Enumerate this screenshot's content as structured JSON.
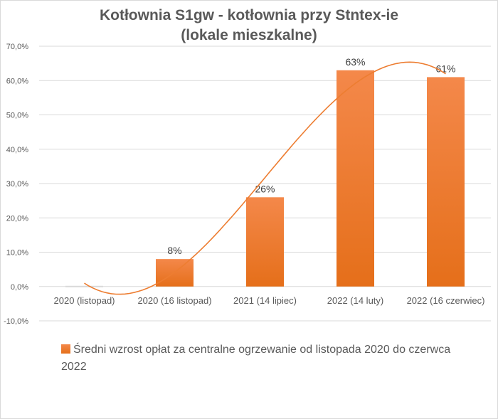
{
  "chart_data": {
    "type": "bar",
    "title_line1": "Kotłownia S1gw - kotłownia przy Stntex-ie",
    "title_line2": "(lokale mieszkalne)",
    "categories": [
      "2020 (listopad)",
      "2020 (16 listopad)",
      "2021 (14 lipiec)",
      "2022 (14 luty)",
      "2022 (16 czerwiec)"
    ],
    "series": [
      {
        "name": "Średni wzrost opłat za centralne ogrzewanie  od listopada 2020  do czerwca 2022",
        "values": [
          0,
          8,
          26,
          63,
          61
        ],
        "data_labels": [
          "",
          "8%",
          "26%",
          "63%",
          "61%"
        ]
      }
    ],
    "ylim": [
      -10,
      70
    ],
    "ytick_labels": [
      "-10,0%",
      "0,0%",
      "10,0%",
      "20,0%",
      "30,0%",
      "40,0%",
      "50,0%",
      "60,0%",
      "70,0%"
    ],
    "yticks": [
      -10,
      0,
      10,
      20,
      30,
      40,
      50,
      60,
      70
    ],
    "trendline": "polynomial",
    "grid": true,
    "legend_position": "bottom",
    "colors": {
      "bar_top": "#f4884a",
      "bar_bottom": "#e56f1a",
      "trendline": "#ed7d31",
      "grid": "#d9d9d9",
      "text": "#595959",
      "zero_marker": "#d9d9d9"
    }
  }
}
